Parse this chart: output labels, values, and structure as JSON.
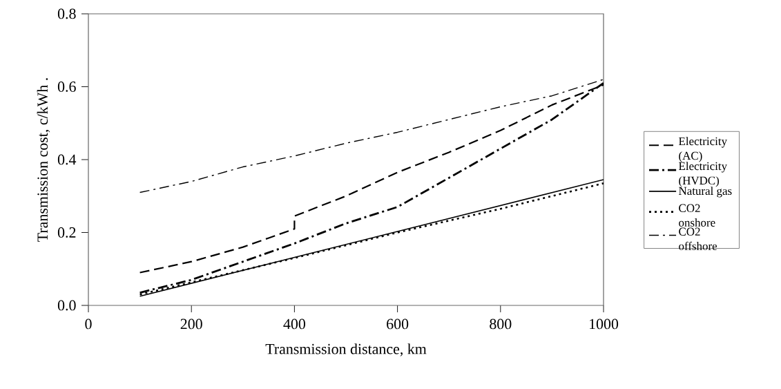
{
  "chart_data": {
    "type": "line",
    "xlabel": "Transmission distance, km",
    "ylabel": "Transmission cost, c/kWh .",
    "xlim": [
      0,
      1000
    ],
    "ylim": [
      0,
      0.8
    ],
    "xticks": [
      0,
      200,
      400,
      600,
      800,
      1000
    ],
    "yticks": [
      {
        "value": 0,
        "label": "0.0"
      },
      {
        "value": 0.2,
        "label": "0.2"
      },
      {
        "value": 0.4,
        "label": "0.4"
      },
      {
        "value": 0.6,
        "label": "0.6"
      },
      {
        "value": 0.8,
        "label": "0.8"
      }
    ],
    "legend": "right",
    "grid": false,
    "series": [
      {
        "name": "Electricity (AC)",
        "color": "#000000",
        "line_style": "dashed",
        "x": [
          100,
          200,
          300,
          350,
          400,
          400,
          500,
          600,
          700,
          800,
          900,
          1000
        ],
        "values": [
          0.09,
          0.12,
          0.16,
          0.185,
          0.21,
          0.245,
          0.3,
          0.365,
          0.42,
          0.48,
          0.55,
          0.605
        ]
      },
      {
        "name": "Electricity (HVDC)",
        "color": "#000000",
        "line_style": "dashdot",
        "x": [
          100,
          200,
          300,
          400,
          500,
          600,
          700,
          800,
          900,
          1000
        ],
        "values": [
          0.035,
          0.07,
          0.12,
          0.17,
          0.225,
          0.27,
          0.35,
          0.43,
          0.51,
          0.61
        ]
      },
      {
        "name": "Natural gas",
        "color": "#000000",
        "line_style": "solid",
        "x": [
          100,
          1000
        ],
        "values": [
          0.025,
          0.345
        ]
      },
      {
        "name": "CO2 onshore",
        "color": "#000000",
        "line_style": "dotted",
        "x": [
          100,
          400,
          600,
          800,
          1000
        ],
        "values": [
          0.03,
          0.13,
          0.2,
          0.265,
          0.335
        ]
      },
      {
        "name": "CO2 offshore",
        "color": "#000000",
        "line_style": "dashdotdot",
        "x": [
          100,
          200,
          300,
          400,
          500,
          600,
          700,
          800,
          900,
          1000
        ],
        "values": [
          0.31,
          0.34,
          0.38,
          0.41,
          0.445,
          0.475,
          0.51,
          0.545,
          0.575,
          0.62
        ]
      }
    ]
  }
}
